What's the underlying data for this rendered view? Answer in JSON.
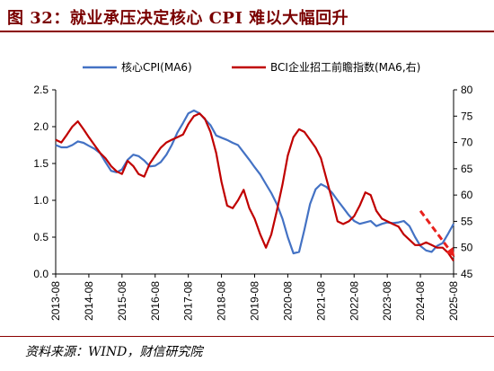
{
  "figure": {
    "title": "图 32：就业承压决定核心 CPI 难以大幅回升",
    "source": "资料来源：WIND，财信研究院"
  },
  "colors": {
    "core_cpi": "#4472c4",
    "bci": "#c00000",
    "arrow": "#e8211d",
    "title": "#7a0000"
  },
  "chart_data": {
    "type": "line",
    "x_ticks": [
      "2013-08",
      "2014-08",
      "2015-08",
      "2016-08",
      "2017-08",
      "2018-08",
      "2019-08",
      "2020-08",
      "2021-08",
      "2022-08",
      "2023-08",
      "2024-08",
      "2025-08"
    ],
    "y_left": {
      "ylim": [
        0,
        2.5
      ],
      "ticks": [
        "0.0",
        "0.5",
        "1.0",
        "1.5",
        "2.0",
        "2.5"
      ]
    },
    "y_right": {
      "ylim": [
        45,
        80
      ],
      "ticks": [
        "45",
        "50",
        "55",
        "60",
        "65",
        "70",
        "75",
        "80"
      ]
    },
    "legend_position": "top",
    "series": [
      {
        "name": "核心CPI(MA6)",
        "axis": "left",
        "points": [
          [
            2013.58,
            1.75
          ],
          [
            2013.75,
            1.72
          ],
          [
            2013.92,
            1.72
          ],
          [
            2014.08,
            1.75
          ],
          [
            2014.25,
            1.8
          ],
          [
            2014.42,
            1.78
          ],
          [
            2014.58,
            1.74
          ],
          [
            2014.75,
            1.7
          ],
          [
            2014.92,
            1.64
          ],
          [
            2015.08,
            1.52
          ],
          [
            2015.25,
            1.4
          ],
          [
            2015.42,
            1.38
          ],
          [
            2015.58,
            1.42
          ],
          [
            2015.75,
            1.55
          ],
          [
            2015.92,
            1.62
          ],
          [
            2016.08,
            1.6
          ],
          [
            2016.25,
            1.54
          ],
          [
            2016.42,
            1.46
          ],
          [
            2016.58,
            1.47
          ],
          [
            2016.75,
            1.52
          ],
          [
            2016.92,
            1.62
          ],
          [
            2017.08,
            1.75
          ],
          [
            2017.25,
            1.92
          ],
          [
            2017.42,
            2.05
          ],
          [
            2017.58,
            2.18
          ],
          [
            2017.75,
            2.22
          ],
          [
            2017.92,
            2.18
          ],
          [
            2018.08,
            2.1
          ],
          [
            2018.25,
            2.02
          ],
          [
            2018.42,
            1.88
          ],
          [
            2018.58,
            1.85
          ],
          [
            2018.75,
            1.82
          ],
          [
            2018.92,
            1.78
          ],
          [
            2019.08,
            1.75
          ],
          [
            2019.25,
            1.65
          ],
          [
            2019.42,
            1.55
          ],
          [
            2019.58,
            1.45
          ],
          [
            2019.75,
            1.35
          ],
          [
            2019.92,
            1.22
          ],
          [
            2020.08,
            1.1
          ],
          [
            2020.25,
            0.95
          ],
          [
            2020.42,
            0.75
          ],
          [
            2020.58,
            0.5
          ],
          [
            2020.75,
            0.28
          ],
          [
            2020.92,
            0.3
          ],
          [
            2021.08,
            0.6
          ],
          [
            2021.25,
            0.95
          ],
          [
            2021.42,
            1.15
          ],
          [
            2021.58,
            1.22
          ],
          [
            2021.75,
            1.18
          ],
          [
            2021.92,
            1.1
          ],
          [
            2022.08,
            1.0
          ],
          [
            2022.25,
            0.9
          ],
          [
            2022.42,
            0.8
          ],
          [
            2022.58,
            0.72
          ],
          [
            2022.75,
            0.68
          ],
          [
            2022.92,
            0.7
          ],
          [
            2023.08,
            0.72
          ],
          [
            2023.25,
            0.65
          ],
          [
            2023.42,
            0.68
          ],
          [
            2023.58,
            0.7
          ],
          [
            2023.75,
            0.69
          ],
          [
            2023.92,
            0.7
          ],
          [
            2024.08,
            0.72
          ],
          [
            2024.25,
            0.65
          ],
          [
            2024.42,
            0.5
          ],
          [
            2024.58,
            0.38
          ],
          [
            2024.75,
            0.32
          ],
          [
            2024.92,
            0.3
          ],
          [
            2025.08,
            0.38
          ],
          [
            2025.25,
            0.42
          ],
          [
            2025.42,
            0.55
          ],
          [
            2025.58,
            0.68
          ]
        ]
      },
      {
        "name": "BCI企业招工前瞻指数(MA6,右)",
        "axis": "right",
        "points": [
          [
            2013.58,
            70.5
          ],
          [
            2013.75,
            70.0
          ],
          [
            2013.92,
            71.5
          ],
          [
            2014.08,
            73.0
          ],
          [
            2014.25,
            74.0
          ],
          [
            2014.42,
            72.5
          ],
          [
            2014.58,
            71.0
          ],
          [
            2014.75,
            69.5
          ],
          [
            2014.92,
            68.0
          ],
          [
            2015.08,
            67.0
          ],
          [
            2015.25,
            65.5
          ],
          [
            2015.42,
            64.5
          ],
          [
            2015.58,
            64.0
          ],
          [
            2015.75,
            66.5
          ],
          [
            2015.92,
            65.5
          ],
          [
            2016.08,
            64.0
          ],
          [
            2016.25,
            63.5
          ],
          [
            2016.42,
            66.0
          ],
          [
            2016.58,
            67.5
          ],
          [
            2016.75,
            69.0
          ],
          [
            2016.92,
            70.0
          ],
          [
            2017.08,
            70.5
          ],
          [
            2017.25,
            71.0
          ],
          [
            2017.42,
            71.5
          ],
          [
            2017.58,
            73.5
          ],
          [
            2017.75,
            75.0
          ],
          [
            2017.92,
            75.5
          ],
          [
            2018.08,
            74.5
          ],
          [
            2018.25,
            72.0
          ],
          [
            2018.42,
            68.0
          ],
          [
            2018.58,
            62.5
          ],
          [
            2018.75,
            58.0
          ],
          [
            2018.92,
            57.5
          ],
          [
            2019.08,
            59.0
          ],
          [
            2019.25,
            61.0
          ],
          [
            2019.42,
            57.5
          ],
          [
            2019.58,
            55.5
          ],
          [
            2019.75,
            52.5
          ],
          [
            2019.92,
            50.0
          ],
          [
            2020.08,
            52.5
          ],
          [
            2020.25,
            57.0
          ],
          [
            2020.42,
            62.0
          ],
          [
            2020.58,
            67.5
          ],
          [
            2020.75,
            71.0
          ],
          [
            2020.92,
            72.5
          ],
          [
            2021.08,
            72.0
          ],
          [
            2021.25,
            70.5
          ],
          [
            2021.42,
            69.0
          ],
          [
            2021.58,
            67.0
          ],
          [
            2021.75,
            63.0
          ],
          [
            2021.92,
            59.0
          ],
          [
            2022.08,
            55.0
          ],
          [
            2022.25,
            54.5
          ],
          [
            2022.42,
            55.0
          ],
          [
            2022.58,
            56.0
          ],
          [
            2022.75,
            58.0
          ],
          [
            2022.92,
            60.5
          ],
          [
            2023.08,
            60.0
          ],
          [
            2023.25,
            57.0
          ],
          [
            2023.42,
            55.5
          ],
          [
            2023.58,
            55.0
          ],
          [
            2023.75,
            54.5
          ],
          [
            2023.92,
            54.0
          ],
          [
            2024.08,
            52.5
          ],
          [
            2024.25,
            51.5
          ],
          [
            2024.42,
            50.5
          ],
          [
            2024.58,
            50.5
          ],
          [
            2024.75,
            51.0
          ],
          [
            2024.92,
            50.5
          ],
          [
            2025.08,
            50.0
          ],
          [
            2025.25,
            50.0
          ],
          [
            2025.42,
            49.0
          ],
          [
            2025.58,
            47.5
          ]
        ]
      }
    ],
    "annotation": {
      "type": "arrow",
      "from": [
        2024.58,
        57.0
      ],
      "to": [
        2025.55,
        48.8
      ],
      "axis": "right"
    }
  }
}
